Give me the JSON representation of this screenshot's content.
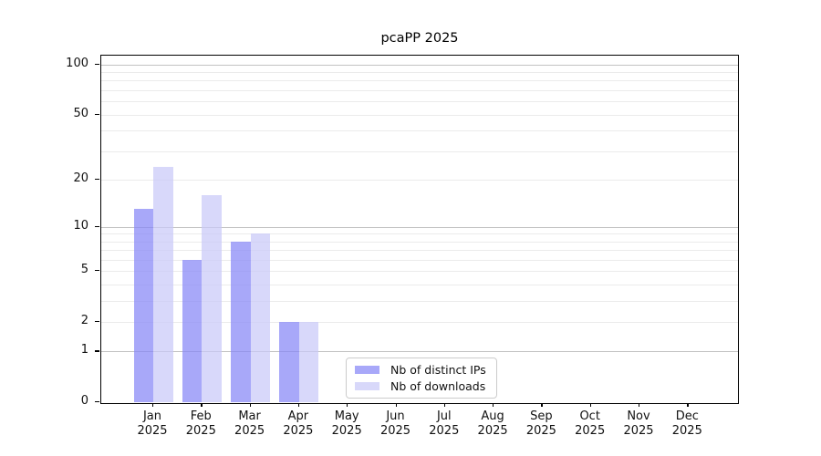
{
  "chart_data": {
    "type": "bar",
    "title": "pcaPP 2025",
    "x_categories": [
      "Jan 2025",
      "Feb 2025",
      "Mar 2025",
      "Apr 2025",
      "May 2025",
      "Jun 2025",
      "Jul 2025",
      "Aug 2025",
      "Sep 2025",
      "Oct 2025",
      "Nov 2025",
      "Dec 2025"
    ],
    "series": [
      {
        "name": "Nb of distinct IPs",
        "color": "rgba(134,134,247,0.72)",
        "values": [
          13,
          6,
          8,
          2,
          0,
          0,
          0,
          0,
          0,
          0,
          0,
          0
        ]
      },
      {
        "name": "Nb of downloads",
        "color": "rgba(201,201,248,0.72)",
        "values": [
          24,
          16,
          9,
          2,
          0,
          0,
          0,
          0,
          0,
          0,
          0,
          0
        ]
      }
    ],
    "y_axis": {
      "scale": "log1p",
      "tick_labels": [
        0,
        1,
        2,
        5,
        10,
        20,
        50,
        100
      ],
      "lim": [
        0,
        113
      ],
      "major_gridlines": [
        1,
        10,
        100
      ],
      "minor_gridlines": [
        2,
        3,
        4,
        5,
        6,
        7,
        8,
        9,
        20,
        30,
        40,
        50,
        60,
        70,
        80,
        90
      ]
    },
    "legend": {
      "position": "lower center"
    },
    "colors": {
      "axis": "#000000",
      "major_grid": "#c2c2c2",
      "minor_grid": "#ebebeb",
      "background": "#ffffff"
    }
  }
}
